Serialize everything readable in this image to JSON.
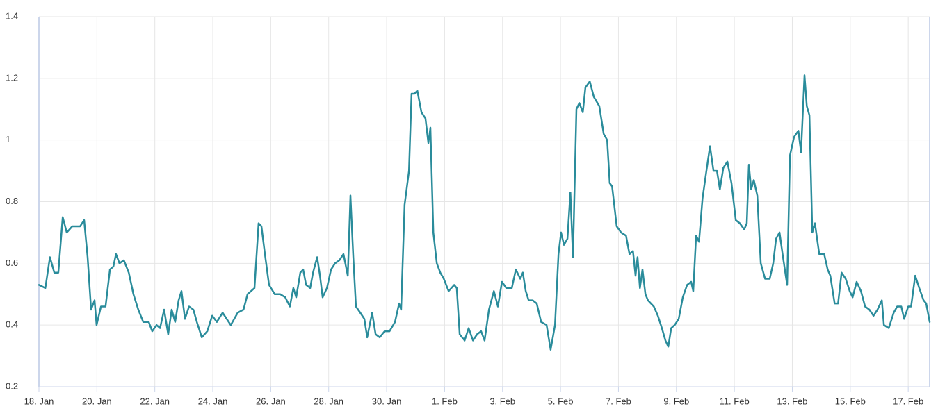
{
  "chart_data": {
    "type": "line",
    "x": [
      0,
      0.22,
      0.38,
      0.53,
      0.67,
      0.82,
      0.96,
      1.15,
      1.42,
      1.56,
      1.68,
      1.8,
      1.92,
      1.99,
      2.14,
      2.3,
      2.45,
      2.57,
      2.66,
      2.78,
      2.93,
      3.1,
      3.26,
      3.43,
      3.6,
      3.79,
      3.91,
      4.06,
      4.18,
      4.32,
      4.46,
      4.58,
      4.7,
      4.82,
      4.92,
      5.04,
      5.18,
      5.33,
      5.45,
      5.62,
      5.81,
      5.98,
      6.14,
      6.34,
      6.48,
      6.62,
      6.86,
      7.06,
      7.2,
      7.44,
      7.58,
      7.68,
      7.8,
      7.94,
      8.14,
      8.33,
      8.5,
      8.66,
      8.78,
      8.88,
      9.02,
      9.12,
      9.22,
      9.36,
      9.46,
      9.6,
      9.7,
      9.79,
      9.94,
      10.08,
      10.22,
      10.37,
      10.51,
      10.66,
      10.75,
      10.85,
      10.94,
      11.09,
      11.23,
      11.33,
      11.5,
      11.62,
      11.76,
      11.93,
      12.1,
      12.29,
      12.43,
      12.5,
      12.62,
      12.77,
      12.86,
      12.96,
      13.06,
      13.2,
      13.34,
      13.44,
      13.51,
      13.61,
      13.73,
      13.85,
      13.97,
      14.14,
      14.33,
      14.42,
      14.52,
      14.69,
      14.83,
      14.98,
      15.12,
      15.26,
      15.38,
      15.53,
      15.7,
      15.84,
      15.98,
      16.13,
      16.32,
      16.46,
      16.61,
      16.7,
      16.8,
      16.9,
      17.04,
      17.18,
      17.33,
      17.52,
      17.66,
      17.81,
      17.93,
      18.02,
      18.12,
      18.24,
      18.34,
      18.43,
      18.55,
      18.65,
      18.77,
      18.86,
      19.01,
      19.15,
      19.34,
      19.49,
      19.61,
      19.7,
      19.78,
      19.94,
      20.09,
      20.26,
      20.38,
      20.5,
      20.59,
      20.66,
      20.74,
      20.83,
      20.93,
      21.02,
      21.22,
      21.36,
      21.5,
      21.62,
      21.72,
      21.82,
      21.94,
      22.08,
      22.22,
      22.37,
      22.51,
      22.58,
      22.68,
      22.78,
      22.9,
      23.02,
      23.16,
      23.28,
      23.4,
      23.5,
      23.62,
      23.76,
      23.9,
      24.05,
      24.19,
      24.34,
      24.43,
      24.5,
      24.58,
      24.67,
      24.79,
      24.91,
      25.06,
      25.22,
      25.34,
      25.44,
      25.56,
      25.68,
      25.82,
      25.92,
      26.06,
      26.21,
      26.3,
      26.42,
      26.5,
      26.59,
      26.69,
      26.78,
      26.93,
      27.1,
      27.22,
      27.31,
      27.46,
      27.58,
      27.7,
      27.84,
      27.98,
      28.08,
      28.22,
      28.37,
      28.51,
      28.66,
      28.8,
      28.94,
      29.09,
      29.16,
      29.33,
      29.5,
      29.62,
      29.76,
      29.86,
      30.0,
      30.1,
      30.24,
      30.38,
      30.53,
      30.62,
      30.74
    ],
    "values": [
      0.53,
      0.52,
      0.62,
      0.57,
      0.57,
      0.75,
      0.7,
      0.72,
      0.72,
      0.74,
      0.62,
      0.45,
      0.48,
      0.4,
      0.46,
      0.46,
      0.58,
      0.59,
      0.63,
      0.6,
      0.61,
      0.57,
      0.5,
      0.45,
      0.41,
      0.41,
      0.38,
      0.4,
      0.39,
      0.45,
      0.37,
      0.45,
      0.41,
      0.48,
      0.51,
      0.42,
      0.46,
      0.45,
      0.41,
      0.36,
      0.38,
      0.43,
      0.41,
      0.44,
      0.42,
      0.4,
      0.44,
      0.45,
      0.5,
      0.52,
      0.73,
      0.72,
      0.63,
      0.53,
      0.5,
      0.5,
      0.49,
      0.46,
      0.52,
      0.49,
      0.57,
      0.58,
      0.53,
      0.52,
      0.57,
      0.62,
      0.56,
      0.49,
      0.52,
      0.58,
      0.6,
      0.61,
      0.63,
      0.56,
      0.82,
      0.62,
      0.46,
      0.44,
      0.42,
      0.36,
      0.44,
      0.37,
      0.36,
      0.38,
      0.38,
      0.41,
      0.47,
      0.45,
      0.79,
      0.9,
      1.15,
      1.15,
      1.16,
      1.09,
      1.07,
      0.99,
      1.04,
      0.7,
      0.6,
      0.57,
      0.55,
      0.51,
      0.53,
      0.52,
      0.37,
      0.35,
      0.39,
      0.35,
      0.37,
      0.38,
      0.35,
      0.45,
      0.51,
      0.46,
      0.54,
      0.52,
      0.52,
      0.58,
      0.55,
      0.57,
      0.51,
      0.48,
      0.48,
      0.47,
      0.41,
      0.4,
      0.32,
      0.4,
      0.63,
      0.7,
      0.66,
      0.68,
      0.83,
      0.62,
      1.1,
      1.12,
      1.09,
      1.17,
      1.19,
      1.14,
      1.11,
      1.02,
      1.0,
      0.86,
      0.85,
      0.72,
      0.7,
      0.69,
      0.63,
      0.64,
      0.56,
      0.62,
      0.52,
      0.58,
      0.5,
      0.48,
      0.46,
      0.43,
      0.39,
      0.35,
      0.33,
      0.39,
      0.4,
      0.42,
      0.49,
      0.53,
      0.54,
      0.51,
      0.69,
      0.67,
      0.81,
      0.89,
      0.98,
      0.9,
      0.9,
      0.84,
      0.91,
      0.93,
      0.86,
      0.74,
      0.73,
      0.71,
      0.73,
      0.92,
      0.84,
      0.87,
      0.82,
      0.6,
      0.55,
      0.55,
      0.6,
      0.68,
      0.7,
      0.62,
      0.53,
      0.95,
      1.01,
      1.03,
      0.96,
      1.21,
      1.11,
      1.08,
      0.7,
      0.73,
      0.63,
      0.63,
      0.58,
      0.56,
      0.47,
      0.47,
      0.57,
      0.55,
      0.51,
      0.49,
      0.54,
      0.51,
      0.46,
      0.45,
      0.43,
      0.45,
      0.48,
      0.4,
      0.39,
      0.44,
      0.46,
      0.46,
      0.42,
      0.46,
      0.46,
      0.56,
      0.52,
      0.48,
      0.47,
      0.41
    ],
    "color": "#2a8c9b",
    "xlim": [
      0,
      30.74
    ],
    "xticks": [
      {
        "value": 0,
        "label": "18. Jan"
      },
      {
        "value": 2,
        "label": "20. Jan"
      },
      {
        "value": 4,
        "label": "22. Jan"
      },
      {
        "value": 6,
        "label": "24. Jan"
      },
      {
        "value": 8,
        "label": "26. Jan"
      },
      {
        "value": 10,
        "label": "28. Jan"
      },
      {
        "value": 12,
        "label": "30. Jan"
      },
      {
        "value": 14,
        "label": "1. Feb"
      },
      {
        "value": 16,
        "label": "3. Feb"
      },
      {
        "value": 18,
        "label": "5. Feb"
      },
      {
        "value": 20,
        "label": "7. Feb"
      },
      {
        "value": 22,
        "label": "9. Feb"
      },
      {
        "value": 24,
        "label": "11. Feb"
      },
      {
        "value": 26,
        "label": "13. Feb"
      },
      {
        "value": 28,
        "label": "15. Feb"
      },
      {
        "value": 30,
        "label": "17. Feb"
      }
    ],
    "ylim": [
      0.2,
      1.4
    ],
    "yticks": [
      0.2,
      0.4,
      0.6,
      0.8,
      1,
      1.2,
      1.4
    ],
    "grid": true
  }
}
